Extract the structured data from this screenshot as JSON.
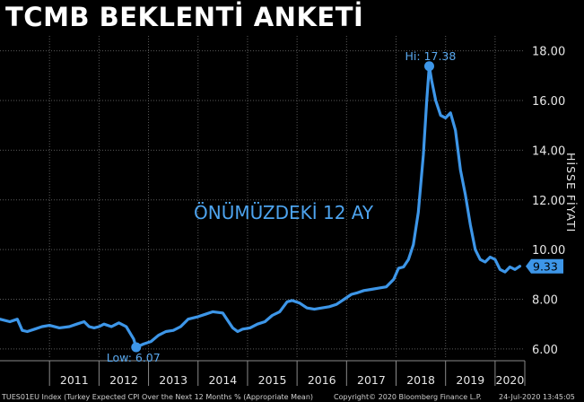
{
  "title": "TCMB BEKLENTİ ANKETİ",
  "colors": {
    "line": "#3d96e8",
    "grid": "#5a5a5a",
    "background": "#000000"
  },
  "footer": {
    "source": "TUES01EU Index (Turkey Expected CPI Over the Next 12 Months % (Appropriate Mean)",
    "copyright": "Copyright© 2020 Bloomberg Finance L.P.",
    "timestamp": "24-Jul-2020 13:45:05"
  },
  "chart_data": {
    "type": "line",
    "title": "TCMB BEKLENTİ ANKETİ",
    "ylabel": "HİSSE FİYATI",
    "xlabel": "",
    "annotation": "ÖNÜMÜZDEKİ 12 AY",
    "ylim": [
      5.6,
      18.6
    ],
    "yticks": [
      6,
      8,
      10,
      12,
      14,
      16,
      18
    ],
    "ytick_labels": [
      "6.00",
      "8.00",
      "10.00",
      "12.00",
      "14.00",
      "16.00",
      "18.00"
    ],
    "xlim": [
      2010,
      2020.6
    ],
    "xticks": [
      2011,
      2012,
      2013,
      2014,
      2015,
      2016,
      2017,
      2018,
      2019,
      2020
    ],
    "xtick_labels": [
      "2011",
      "2012",
      "2013",
      "2014",
      "2015",
      "2016",
      "2017",
      "2018",
      "2019",
      "2020"
    ],
    "grid": true,
    "high": {
      "label": "Hi: 17.38",
      "x": 2018.67,
      "y": 17.38
    },
    "low": {
      "label": "Low: 6.07",
      "x": 2012.75,
      "y": 6.07
    },
    "last": {
      "label": "9.33",
      "x": 2020.5,
      "y": 9.33
    },
    "series": [
      {
        "x": [
          2010.0,
          2010.2,
          2010.35,
          2010.45,
          2010.55,
          2010.7,
          2010.85,
          2011.0,
          2011.2,
          2011.4,
          2011.55,
          2011.7,
          2011.8,
          2011.9,
          2012.0,
          2012.1,
          2012.25,
          2012.4,
          2012.55,
          2012.7,
          2012.75,
          2012.9,
          2013.05,
          2013.2,
          2013.35,
          2013.5,
          2013.65,
          2013.8,
          2014.0,
          2014.15,
          2014.3,
          2014.5,
          2014.7,
          2014.8,
          2014.9,
          2015.05,
          2015.2,
          2015.35,
          2015.5,
          2015.65,
          2015.8,
          2015.9,
          2016.05,
          2016.2,
          2016.35,
          2016.5,
          2016.65,
          2016.8,
          2016.95,
          2017.1,
          2017.2,
          2017.35,
          2017.5,
          2017.65,
          2017.8,
          2017.95,
          2018.05,
          2018.15,
          2018.25,
          2018.35,
          2018.45,
          2018.55,
          2018.62,
          2018.67,
          2018.72,
          2018.8,
          2018.9,
          2019.0,
          2019.1,
          2019.2,
          2019.3,
          2019.4,
          2019.5,
          2019.6,
          2019.7,
          2019.8,
          2019.9,
          2020.0,
          2020.1,
          2020.2,
          2020.3,
          2020.4,
          2020.5
        ],
        "y": [
          7.2,
          7.1,
          7.2,
          6.75,
          6.7,
          6.8,
          6.9,
          6.95,
          6.85,
          6.9,
          7.0,
          7.1,
          6.9,
          6.85,
          6.9,
          7.0,
          6.9,
          7.05,
          6.9,
          6.4,
          6.07,
          6.2,
          6.3,
          6.55,
          6.7,
          6.75,
          6.9,
          7.2,
          7.3,
          7.4,
          7.5,
          7.45,
          6.85,
          6.7,
          6.8,
          6.85,
          7.0,
          7.1,
          7.35,
          7.5,
          7.9,
          7.95,
          7.85,
          7.65,
          7.6,
          7.65,
          7.7,
          7.8,
          8.0,
          8.2,
          8.25,
          8.35,
          8.4,
          8.45,
          8.5,
          8.8,
          9.25,
          9.3,
          9.6,
          10.2,
          11.5,
          13.8,
          16.0,
          17.38,
          16.8,
          16.0,
          15.4,
          15.3,
          15.5,
          14.8,
          13.2,
          12.2,
          11.0,
          10.0,
          9.6,
          9.5,
          9.7,
          9.6,
          9.2,
          9.1,
          9.3,
          9.2,
          9.33
        ]
      }
    ]
  }
}
